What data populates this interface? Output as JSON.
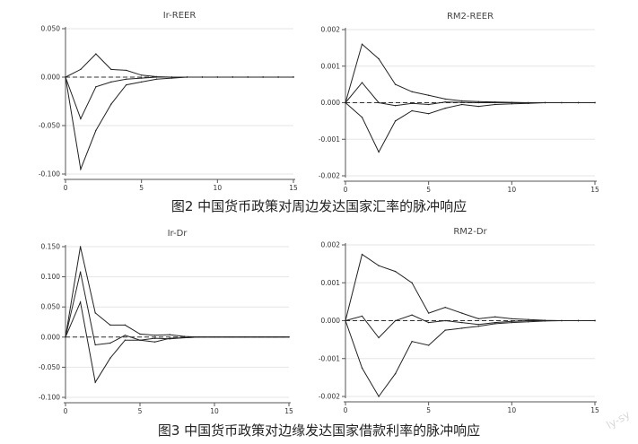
{
  "captions": {
    "fig2": "图2  中国货币政策对周边发达国家汇率的脉冲响应",
    "fig3": "图3  中国货币政策对边缘发达国家借款利率的脉冲响应"
  },
  "watermark": "ly-sy",
  "chart_data": [
    {
      "type": "line",
      "title": "Ir-REER",
      "xlim": [
        0,
        15
      ],
      "ylim": [
        -0.1,
        0.05
      ],
      "xticks": [
        0,
        5,
        10,
        15
      ],
      "yticks": [
        0.05,
        0.0,
        -0.05,
        -0.1
      ],
      "ytick_labels": [
        "0.050",
        "0.000",
        "-0.050",
        "-0.100"
      ],
      "grid": true,
      "zero_line": "dashed",
      "series": [
        {
          "x": [
            0,
            1,
            2,
            3,
            4,
            5,
            6,
            7,
            8,
            9,
            10,
            11,
            12,
            13,
            14,
            15
          ],
          "values": [
            0.0,
            0.008,
            0.024,
            0.008,
            0.007,
            0.002,
            0.0005,
            0.0,
            0.0,
            0.0,
            0.0,
            0.0,
            0.0,
            0.0,
            0.0,
            0.0
          ]
        },
        {
          "x": [
            0,
            1,
            2,
            3,
            4,
            5,
            6,
            7,
            8,
            9,
            10,
            11,
            12,
            13,
            14,
            15
          ],
          "values": [
            0.0,
            -0.043,
            -0.01,
            -0.005,
            -0.002,
            -0.001,
            0.0,
            0.0,
            0.0,
            0.0,
            0.0,
            0.0,
            0.0,
            0.0,
            0.0,
            0.0
          ]
        },
        {
          "x": [
            0,
            1,
            2,
            3,
            4,
            5,
            6,
            7,
            8,
            9,
            10,
            11,
            12,
            13,
            14,
            15
          ],
          "values": [
            0.0,
            -0.095,
            -0.055,
            -0.028,
            -0.008,
            -0.005,
            -0.002,
            -0.001,
            0.0,
            0.0,
            0.0,
            0.0,
            0.0,
            0.0,
            0.0,
            0.0
          ]
        }
      ]
    },
    {
      "type": "line",
      "title": "RM2-REER",
      "xlim": [
        0,
        15
      ],
      "ylim": [
        -0.002,
        0.002
      ],
      "xticks": [
        0,
        5,
        10,
        15
      ],
      "yticks": [
        0.002,
        0.001,
        0.0,
        -0.001,
        -0.002
      ],
      "ytick_labels": [
        "0.002",
        "0.001",
        "0.000",
        "-0.001",
        "-0.002"
      ],
      "grid": true,
      "zero_line": "dashed",
      "series": [
        {
          "x": [
            0,
            1,
            2,
            3,
            4,
            5,
            6,
            7,
            8,
            9,
            10,
            11,
            12,
            13,
            14,
            15
          ],
          "values": [
            0.0,
            0.0016,
            0.0012,
            0.0005,
            0.0003,
            0.0002,
            0.0001,
            5e-05,
            3e-05,
            2e-05,
            1e-05,
            0.0,
            0.0,
            0.0,
            0.0,
            0.0
          ]
        },
        {
          "x": [
            0,
            1,
            2,
            3,
            4,
            5,
            6,
            7,
            8,
            9,
            10,
            11,
            12,
            13,
            14,
            15
          ],
          "values": [
            0.0,
            0.00055,
            0.0,
            -8e-05,
            -2e-05,
            -5e-05,
            2e-05,
            1e-05,
            0.0,
            0.0,
            0.0,
            0.0,
            0.0,
            0.0,
            0.0,
            0.0
          ]
        },
        {
          "x": [
            0,
            1,
            2,
            3,
            4,
            5,
            6,
            7,
            8,
            9,
            10,
            11,
            12,
            13,
            14,
            15
          ],
          "values": [
            0.0,
            -0.0004,
            -0.00135,
            -0.0005,
            -0.00022,
            -0.0003,
            -0.00015,
            -5e-05,
            -0.0001,
            -5e-05,
            -3e-05,
            -2e-05,
            0.0,
            0.0,
            0.0,
            0.0
          ]
        }
      ]
    },
    {
      "type": "line",
      "title": "Ir-Dr",
      "xlim": [
        0,
        15
      ],
      "ylim": [
        -0.1,
        0.15
      ],
      "xticks": [
        0,
        5,
        10,
        15
      ],
      "yticks": [
        0.15,
        0.1,
        0.05,
        0.0,
        -0.05,
        -0.1
      ],
      "ytick_labels": [
        "0.150",
        "0.100",
        "0.050",
        "0.000",
        "-0.050",
        "-0.100"
      ],
      "grid": true,
      "zero_line": "dashed",
      "series": [
        {
          "x": [
            0,
            1,
            2,
            3,
            4,
            5,
            6,
            7,
            8,
            9,
            10,
            11,
            12,
            13,
            14,
            15
          ],
          "values": [
            0.0,
            0.15,
            0.04,
            0.02,
            0.02,
            0.005,
            0.003,
            0.004,
            0.001,
            0.0,
            0.0,
            0.0,
            0.0,
            0.0,
            0.0,
            0.0
          ]
        },
        {
          "x": [
            0,
            1,
            2,
            3,
            4,
            5,
            6,
            7,
            8,
            9,
            10,
            11,
            12,
            13,
            14,
            15
          ],
          "values": [
            0.0,
            0.108,
            -0.013,
            -0.01,
            0.003,
            -0.005,
            -0.002,
            -0.003,
            -0.001,
            0.0,
            0.0,
            0.0,
            0.0,
            0.0,
            0.0,
            0.0
          ]
        },
        {
          "x": [
            0,
            1,
            2,
            3,
            4,
            5,
            6,
            7,
            8,
            9,
            10,
            11,
            12,
            13,
            14,
            15
          ],
          "values": [
            0.0,
            0.058,
            -0.075,
            -0.035,
            -0.005,
            -0.005,
            -0.008,
            -0.002,
            -0.001,
            0.0,
            0.0,
            0.0,
            0.0,
            0.0,
            0.0,
            0.0
          ]
        }
      ]
    },
    {
      "type": "line",
      "title": "RM2-Dr",
      "xlim": [
        0,
        15
      ],
      "ylim": [
        -0.002,
        0.002
      ],
      "xticks": [
        0,
        5,
        10,
        15
      ],
      "yticks": [
        0.002,
        0.001,
        0.0,
        -0.001,
        -0.002
      ],
      "ytick_labels": [
        "0.002",
        "0.001",
        "0.000",
        "-0.001",
        "-0.002"
      ],
      "grid": true,
      "zero_line": "dashed",
      "series": [
        {
          "x": [
            0,
            1,
            2,
            3,
            4,
            5,
            6,
            7,
            8,
            9,
            10,
            11,
            12,
            13,
            14,
            15
          ],
          "values": [
            0.0,
            0.00175,
            0.00145,
            0.0013,
            0.001,
            0.0002,
            0.00035,
            0.0002,
            5e-05,
            0.0001,
            5e-05,
            3e-05,
            1e-05,
            0.0,
            0.0,
            0.0
          ]
        },
        {
          "x": [
            0,
            1,
            2,
            3,
            4,
            5,
            6,
            7,
            8,
            9,
            10,
            11,
            12,
            13,
            14,
            15
          ],
          "values": [
            0.0,
            0.00012,
            -0.00045,
            0.0,
            0.00015,
            -5e-05,
            0.0,
            -5e-05,
            -0.0001,
            -5e-05,
            -2e-05,
            0.0,
            0.0,
            0.0,
            0.0,
            0.0
          ]
        },
        {
          "x": [
            0,
            1,
            2,
            3,
            4,
            5,
            6,
            7,
            8,
            9,
            10,
            11,
            12,
            13,
            14,
            15
          ],
          "values": [
            0.0,
            -0.00125,
            -0.002,
            -0.0014,
            -0.00055,
            -0.00065,
            -0.00025,
            -0.0002,
            -0.00015,
            -8e-05,
            -5e-05,
            -3e-05,
            -1e-05,
            0.0,
            0.0,
            0.0
          ]
        }
      ]
    }
  ]
}
